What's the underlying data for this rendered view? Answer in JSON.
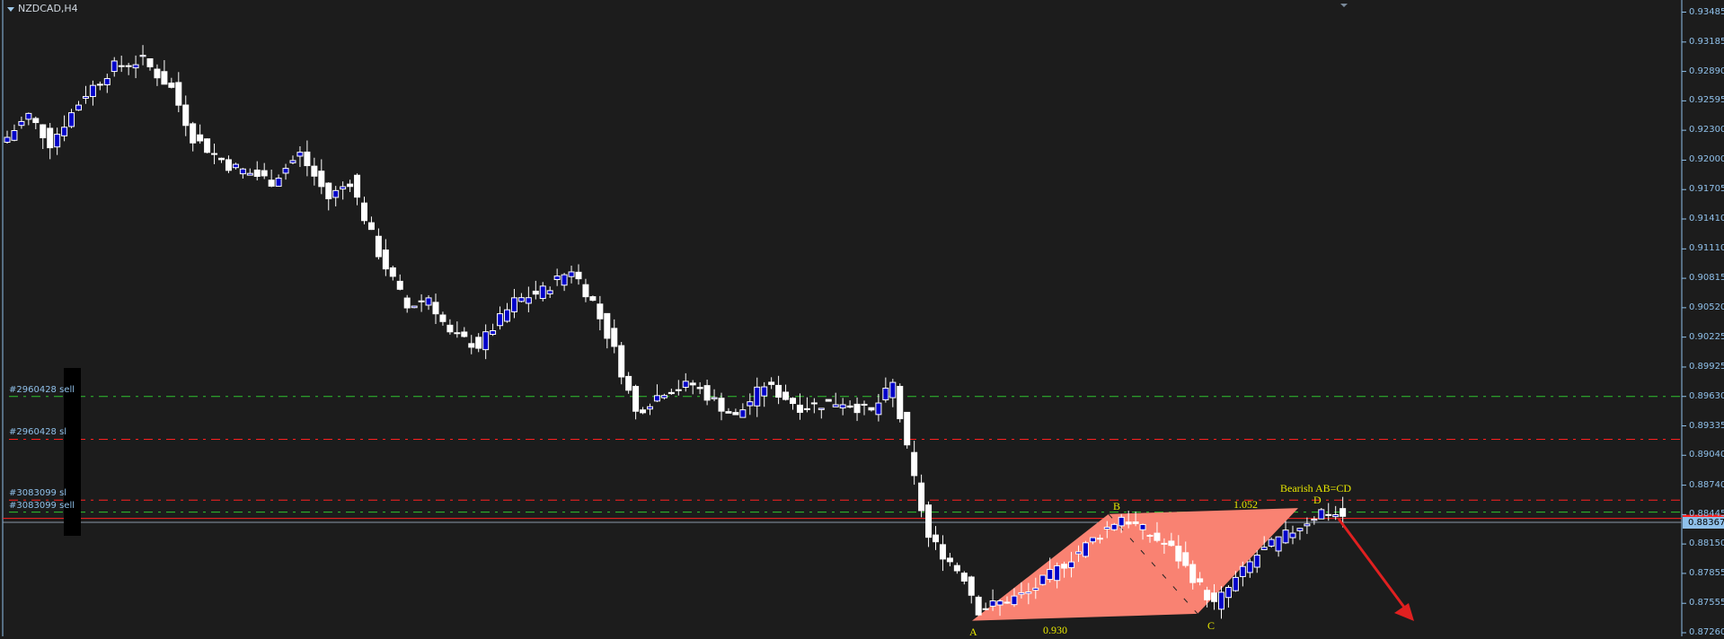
{
  "chart_data": {
    "type": "candlestick",
    "title": "NZDCAD,H4",
    "ylim": [
      0.8726,
      0.93485
    ],
    "y_ticks": [
      "0.93485",
      "0.93185",
      "0.92890",
      "0.92595",
      "0.92300",
      "0.92000",
      "0.91705",
      "0.91410",
      "0.91110",
      "0.90815",
      "0.90520",
      "0.90225",
      "0.89925",
      "0.89630",
      "0.89335",
      "0.89040",
      "0.88740",
      "0.88445",
      "0.88150",
      "0.87855",
      "0.87555",
      "0.87260"
    ],
    "current_price": "0.88367",
    "current_price_value": 0.88367,
    "bid_line": 0.88407,
    "close_path": [
      [
        0,
        0.9223
      ],
      [
        3,
        0.9245
      ],
      [
        6,
        0.9217
      ],
      [
        11,
        0.9267
      ],
      [
        15,
        0.9294
      ],
      [
        19,
        0.93
      ],
      [
        23,
        0.9272
      ],
      [
        26,
        0.9223
      ],
      [
        31,
        0.9195
      ],
      [
        37,
        0.9179
      ],
      [
        41,
        0.9206
      ],
      [
        45,
        0.9162
      ],
      [
        48,
        0.9179
      ],
      [
        52,
        0.9107
      ],
      [
        56,
        0.9052
      ],
      [
        59,
        0.9063
      ],
      [
        62,
        0.9025
      ],
      [
        66,
        0.9014
      ],
      [
        71,
        0.9058
      ],
      [
        75,
        0.9069
      ],
      [
        79,
        0.9091
      ],
      [
        82,
        0.9058
      ],
      [
        85,
        0.9009
      ],
      [
        88,
        0.8947
      ],
      [
        92,
        0.8969
      ],
      [
        96,
        0.8975
      ],
      [
        102,
        0.8942
      ],
      [
        106,
        0.8975
      ],
      [
        111,
        0.8953
      ],
      [
        117,
        0.8958
      ],
      [
        121,
        0.8947
      ],
      [
        124,
        0.8975
      ],
      [
        126,
        0.8909
      ],
      [
        129,
        0.8821
      ],
      [
        134,
        0.8782
      ],
      [
        136,
        0.8749
      ],
      [
        143,
        0.8766
      ],
      [
        156,
        0.8843
      ],
      [
        163,
        0.881
      ],
      [
        169,
        0.8754
      ],
      [
        175,
        0.8804
      ],
      [
        184,
        0.8848
      ],
      [
        187,
        0.8843
      ]
    ],
    "order_levels": [
      {
        "label": "#2960428 sell",
        "price": 0.8963,
        "color": "#2ec42e"
      },
      {
        "label": "#2960428 sl",
        "price": 0.892,
        "color": "#ff2020"
      },
      {
        "label": "#3083099 sl",
        "price": 0.8859,
        "color": "#ff2020"
      },
      {
        "label": "#3083099 sell",
        "price": 0.8847,
        "color": "#2ec42e"
      }
    ],
    "pattern": {
      "name": "Bearish AB=CD",
      "points": [
        {
          "label": "A",
          "price": 0.8738
        },
        {
          "label": "B",
          "price": 0.8845
        },
        {
          "label": "C",
          "price": 0.8745
        },
        {
          "label": "D",
          "price": 0.8851
        }
      ],
      "ab_ratio": "0.930",
      "cd_ratio": "1.052",
      "fill": "#f98272",
      "label_color": "#e8e800",
      "arrow_color": "#e02020",
      "direction": "down"
    },
    "colors": {
      "background": "#1c1c1c",
      "bull_body": "#0000c8",
      "bear_body": "#ffffff",
      "axis": "#8fc0ea"
    }
  }
}
